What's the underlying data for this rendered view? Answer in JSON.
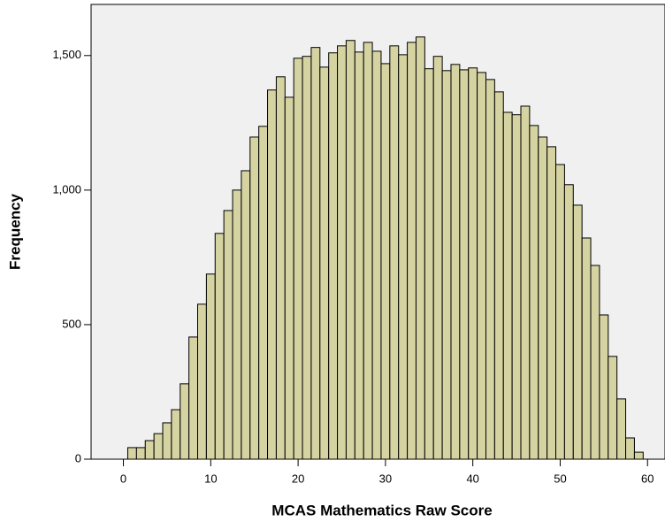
{
  "chart_data": {
    "type": "histogram",
    "x_label": "MCAS Mathematics Raw Score",
    "y_label": "Frequency",
    "bins": [
      0.5,
      1.5,
      2.5,
      3.5,
      4.5,
      5.5,
      6.5,
      7.5,
      8.5,
      9.5,
      10.5,
      11.5,
      12.5,
      13.5,
      14.5,
      15.5,
      16.5,
      17.5,
      18.5,
      19.5,
      20.5,
      21.5,
      22.5,
      23.5,
      24.5,
      25.5,
      26.5,
      27.5,
      28.5,
      29.5,
      30.5,
      31.5,
      32.5,
      33.5,
      34.5,
      35.5,
      36.5,
      37.5,
      38.5,
      39.5,
      40.5,
      41.5,
      42.5,
      43.5,
      44.5,
      45.5,
      46.5,
      47.5,
      48.5,
      49.5,
      50.5,
      51.5,
      52.5,
      53.5,
      54.5,
      55.5,
      56.5,
      57.5,
      58.5,
      59.5
    ],
    "values": [
      43,
      43,
      69,
      95,
      135,
      184,
      280,
      454,
      576,
      688,
      839,
      924,
      1000,
      1072,
      1197,
      1237,
      1372,
      1421,
      1345,
      1490,
      1497,
      1530,
      1457,
      1510,
      1536,
      1556,
      1513,
      1549,
      1516,
      1470,
      1536,
      1503,
      1549,
      1569,
      1451,
      1497,
      1444,
      1467,
      1447,
      1454,
      1437,
      1411,
      1365,
      1289,
      1280,
      1312,
      1240,
      1197,
      1161,
      1095,
      1020,
      944,
      822,
      720,
      536,
      382,
      224,
      79,
      26
    ],
    "color": "#d6d3a2",
    "xlim": [
      -3.7,
      62
    ],
    "xticks": [
      0,
      10,
      20,
      30,
      40,
      50,
      60
    ],
    "ylim": [
      0,
      1690
    ],
    "yticks": [
      0,
      500,
      {
        "value": 1000,
        "label": "1,000"
      },
      {
        "value": 1500,
        "label": "1,500"
      }
    ]
  }
}
